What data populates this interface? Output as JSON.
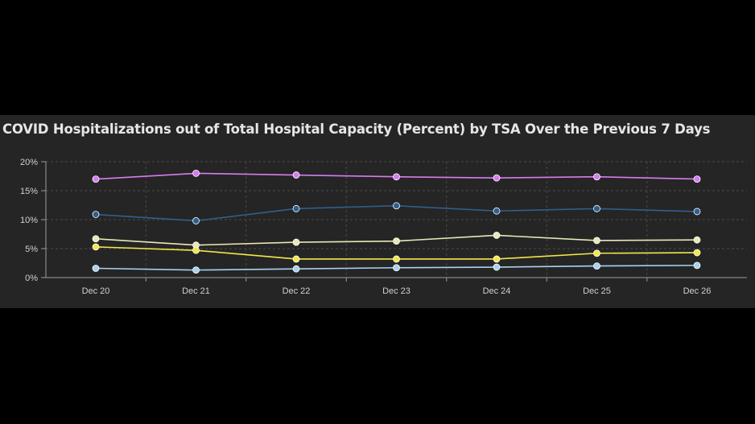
{
  "chart_data": {
    "type": "line",
    "title": "COVID Hospitalizations out of Total Hospital Capacity (Percent) by TSA Over the Previous 7 Days",
    "xlabel": "",
    "ylabel": "",
    "categories": [
      "Dec 20",
      "Dec 21",
      "Dec 22",
      "Dec 23",
      "Dec 24",
      "Dec 25",
      "Dec 26"
    ],
    "ylim": [
      0,
      20
    ],
    "yticks": [
      0,
      5,
      10,
      15,
      20
    ],
    "ytick_labels": [
      "0%",
      "5%",
      "10%",
      "15%",
      "20%"
    ],
    "grid": true,
    "legend": "none",
    "series": [
      {
        "color": "#d77cf0",
        "values": [
          17.0,
          18.0,
          17.7,
          17.4,
          17.2,
          17.4,
          17.0
        ]
      },
      {
        "color": "#2f5f8c",
        "values": [
          10.9,
          9.8,
          11.9,
          12.4,
          11.5,
          11.9,
          11.4
        ]
      },
      {
        "color": "#e8e8b8",
        "values": [
          6.7,
          5.6,
          6.1,
          6.3,
          7.3,
          6.4,
          6.5
        ]
      },
      {
        "color": "#f2e84a",
        "values": [
          5.3,
          4.7,
          3.2,
          3.2,
          3.2,
          4.2,
          4.3
        ]
      },
      {
        "color": "#a9d1f0",
        "values": [
          1.6,
          1.3,
          1.5,
          1.7,
          1.8,
          2.0,
          2.1
        ]
      }
    ]
  },
  "colors": {
    "page_background": "#000000",
    "panel_background": "#252525",
    "grid": "#4a4a4a",
    "axis": "#9a9a9a",
    "text": "#e6e6e6"
  }
}
